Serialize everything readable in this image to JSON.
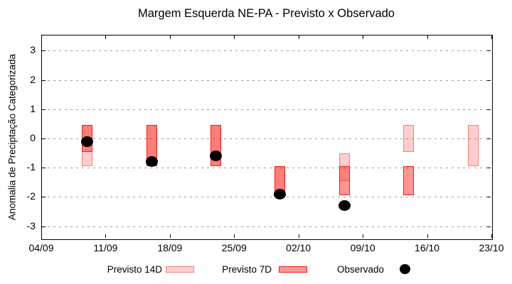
{
  "title": "Margem Esquerda NE-PA - Previsto x Observado",
  "y_axis_label": "Anomalia de Preciptação Categorizada",
  "legend": {
    "previsto_14d_label": "Previsto 14D",
    "previsto_7d_label": "Previsto 7D",
    "observado_label": "Observado"
  },
  "colors": {
    "previsto_14d_fill": "#fbcdc8",
    "previsto_14d_border": "#f59a90",
    "previsto_7d_fill": "#fa9e97",
    "previsto_7d_border": "#ee2018",
    "overlap_fill": "#f4726c",
    "observado_color": "#000000",
    "grid_color": "#9b9b9b",
    "axis_color": "#000000"
  },
  "chart_data": {
    "type": "bar",
    "variant": "floating range bars (forecast category ranges) with scatter overlay (observed)",
    "title": "Margem Esquerda NE-PA - Previsto x Observado",
    "xlabel": "",
    "ylabel": "Anomalia de Preciptação Categorizada",
    "ylim": [
      -3.4,
      3.5
    ],
    "y_ticks": [
      3,
      2,
      1,
      0,
      -1,
      -2,
      -3
    ],
    "grid": "horizontal dotted gridlines at integer y ticks",
    "legend_position": "below plot",
    "x_tick_labels": [
      "04/09",
      "11/09",
      "18/09",
      "25/09",
      "02/10",
      "09/10",
      "16/10",
      "23/10"
    ],
    "x_tick_days": [
      0,
      7,
      14,
      21,
      28,
      35,
      42,
      49
    ],
    "series_names": [
      "Previsto 14D",
      "Previsto 7D",
      "Observado"
    ],
    "groups": [
      {
        "date": "09/09",
        "day": 5,
        "previsto_14d": [
          0.45,
          -0.95
        ],
        "previsto_7d": [
          0.45,
          -0.45
        ],
        "observado": -0.1
      },
      {
        "date": "16/09",
        "day": 12,
        "previsto_14d": [
          0.45,
          -0.95
        ],
        "previsto_7d": [
          0.45,
          -0.95
        ],
        "observado": -0.8
      },
      {
        "date": "23/09",
        "day": 19,
        "previsto_14d": [
          0.45,
          -0.95
        ],
        "previsto_7d": [
          0.45,
          -0.95
        ],
        "observado": -0.6
      },
      {
        "date": "30/09",
        "day": 26,
        "previsto_14d": [
          -0.95,
          -1.95
        ],
        "previsto_7d": [
          -0.95,
          -1.95
        ],
        "observado": -1.9
      },
      {
        "date": "07/10",
        "day": 33,
        "previsto_14d": [
          -0.5,
          -1.45
        ],
        "previsto_7d": [
          -0.95,
          -1.95
        ],
        "observado": -2.3
      },
      {
        "date": "14/10",
        "day": 40,
        "previsto_14d": [
          0.45,
          -0.45
        ],
        "previsto_7d": [
          -0.95,
          -1.95
        ],
        "observado": null
      },
      {
        "date": "21/10",
        "day": 47,
        "previsto_14d": [
          0.45,
          -0.95
        ],
        "previsto_7d": null,
        "observado": null
      }
    ]
  }
}
